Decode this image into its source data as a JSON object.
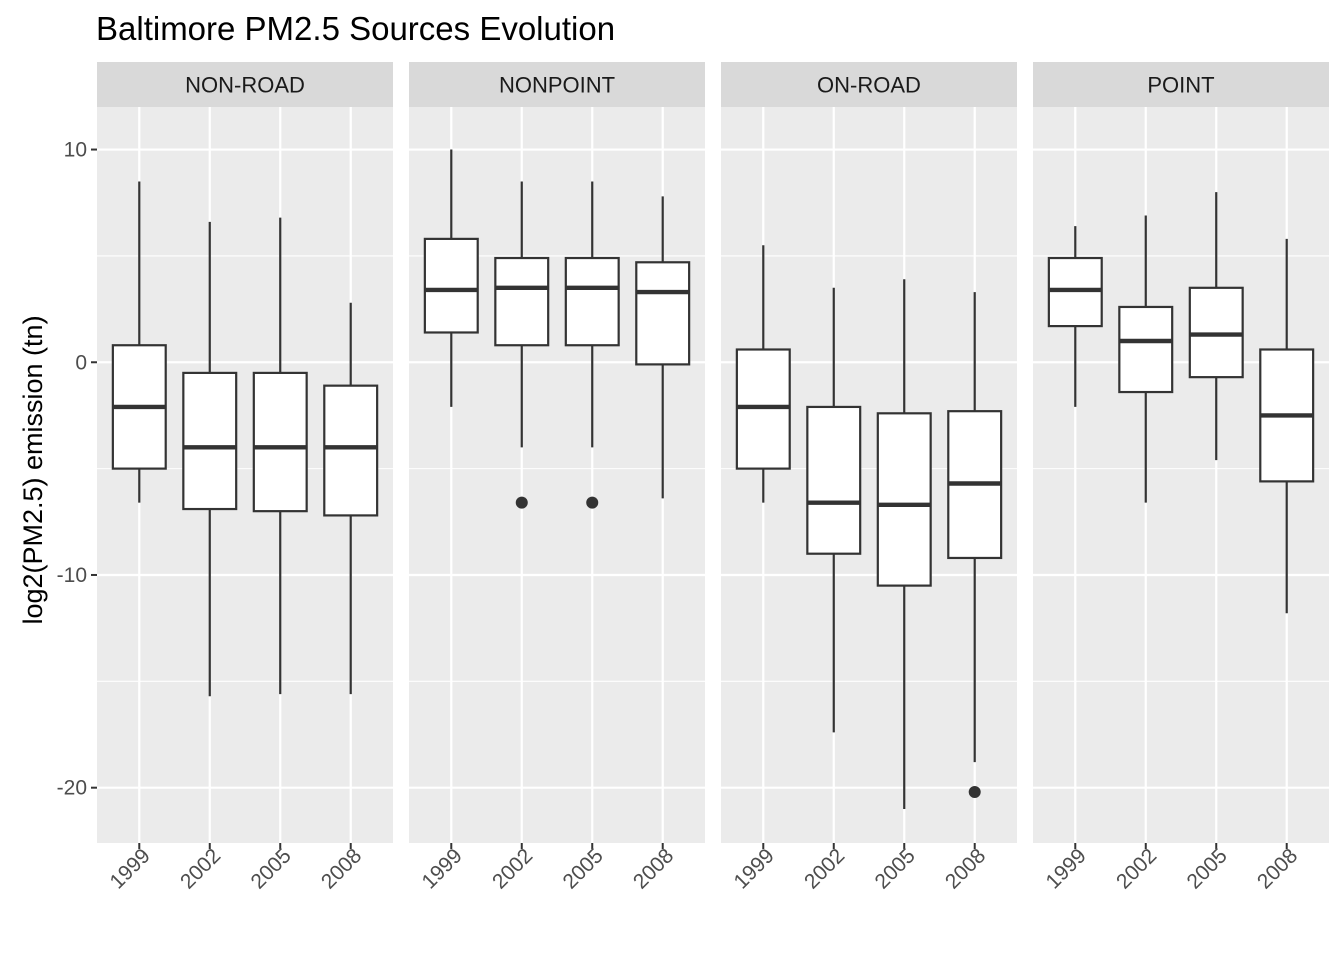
{
  "chart_data": {
    "type": "boxplot",
    "title": "Baltimore PM2.5 Sources Evolution",
    "xlabel": "",
    "ylabel": "log2(PM2.5) emission (tn)",
    "ylim": [
      -22.6,
      12
    ],
    "y_ticks": [
      10,
      0,
      -10,
      -20
    ],
    "y_tick_labels": [
      "10",
      "0",
      "-10",
      "-20"
    ],
    "categories": [
      "1999",
      "2002",
      "2005",
      "2008"
    ],
    "grid": true,
    "colors": {
      "panel_background": "#ebebeb",
      "strip_background": "#d9d9d9",
      "grid_line": "#ffffff",
      "box_fill": "#ffffff",
      "box_stroke": "#333333"
    },
    "facets": [
      {
        "label": "NON-ROAD",
        "boxes": [
          {
            "x": "1999",
            "whisker_low": -6.6,
            "q1": -5.0,
            "median": -2.1,
            "q3": 0.8,
            "whisker_high": 8.5,
            "outliers": []
          },
          {
            "x": "2002",
            "whisker_low": -15.7,
            "q1": -6.9,
            "median": -4.0,
            "q3": -0.5,
            "whisker_high": 6.6,
            "outliers": []
          },
          {
            "x": "2005",
            "whisker_low": -15.6,
            "q1": -7.0,
            "median": -4.0,
            "q3": -0.5,
            "whisker_high": 6.8,
            "outliers": []
          },
          {
            "x": "2008",
            "whisker_low": -15.6,
            "q1": -7.2,
            "median": -4.0,
            "q3": -1.1,
            "whisker_high": 2.8,
            "outliers": []
          }
        ]
      },
      {
        "label": "NONPOINT",
        "boxes": [
          {
            "x": "1999",
            "whisker_low": -2.1,
            "q1": 1.4,
            "median": 3.4,
            "q3": 5.8,
            "whisker_high": 10.0,
            "outliers": []
          },
          {
            "x": "2002",
            "whisker_low": -4.0,
            "q1": 0.8,
            "median": 3.5,
            "q3": 4.9,
            "whisker_high": 8.5,
            "outliers": [
              -6.6
            ]
          },
          {
            "x": "2005",
            "whisker_low": -4.0,
            "q1": 0.8,
            "median": 3.5,
            "q3": 4.9,
            "whisker_high": 8.5,
            "outliers": [
              -6.6
            ]
          },
          {
            "x": "2008",
            "whisker_low": -6.4,
            "q1": -0.1,
            "median": 3.3,
            "q3": 4.7,
            "whisker_high": 7.8,
            "outliers": []
          }
        ]
      },
      {
        "label": "ON-ROAD",
        "boxes": [
          {
            "x": "1999",
            "whisker_low": -6.6,
            "q1": -5.0,
            "median": -2.1,
            "q3": 0.6,
            "whisker_high": 5.5,
            "outliers": []
          },
          {
            "x": "2002",
            "whisker_low": -17.4,
            "q1": -9.0,
            "median": -6.6,
            "q3": -2.1,
            "whisker_high": 3.5,
            "outliers": []
          },
          {
            "x": "2005",
            "whisker_low": -21.0,
            "q1": -10.5,
            "median": -6.7,
            "q3": -2.4,
            "whisker_high": 3.9,
            "outliers": []
          },
          {
            "x": "2008",
            "whisker_low": -18.8,
            "q1": -9.2,
            "median": -5.7,
            "q3": -2.3,
            "whisker_high": 3.3,
            "outliers": [
              -20.2
            ]
          }
        ]
      },
      {
        "label": "POINT",
        "boxes": [
          {
            "x": "1999",
            "whisker_low": -2.1,
            "q1": 1.7,
            "median": 3.4,
            "q3": 4.9,
            "whisker_high": 6.4,
            "outliers": []
          },
          {
            "x": "2002",
            "whisker_low": -6.6,
            "q1": -1.4,
            "median": 1.0,
            "q3": 2.6,
            "whisker_high": 6.9,
            "outliers": []
          },
          {
            "x": "2005",
            "whisker_low": -4.6,
            "q1": -0.7,
            "median": 1.3,
            "q3": 3.5,
            "whisker_high": 8.0,
            "outliers": []
          },
          {
            "x": "2008",
            "whisker_low": -11.8,
            "q1": -5.6,
            "median": -2.5,
            "q3": 0.6,
            "whisker_high": 5.8,
            "outliers": []
          }
        ]
      }
    ]
  }
}
